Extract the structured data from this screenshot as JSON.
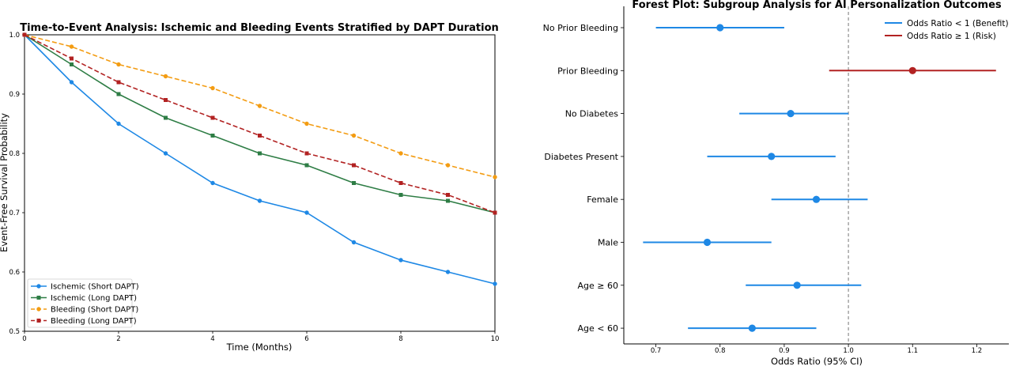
{
  "chart_data": [
    {
      "type": "line",
      "title": "Time-to-Event Analysis: Ischemic and Bleeding Events Stratified by DAPT Duration",
      "xlabel": "Time (Months)",
      "ylabel": "Event-Free Survival Probability",
      "xlim": [
        0,
        10
      ],
      "ylim": [
        0.5,
        1.0
      ],
      "xticks": [
        "0",
        "2",
        "4",
        "6",
        "8",
        "10"
      ],
      "yticks": [
        "0.5",
        "0.6",
        "0.7",
        "0.8",
        "0.9",
        "1.0"
      ],
      "grid": false,
      "legend_position": "lower-left",
      "x": [
        0,
        1,
        2,
        3,
        4,
        5,
        6,
        7,
        8,
        9,
        10
      ],
      "series": [
        {
          "name": "Ischemic (Short DAPT)",
          "color": "#1e88e5",
          "dash": "solid",
          "marker": "circle",
          "values": [
            1.0,
            0.92,
            0.85,
            0.8,
            0.75,
            0.72,
            0.7,
            0.65,
            0.62,
            0.6,
            0.58
          ]
        },
        {
          "name": "Ischemic (Long DAPT)",
          "color": "#2e7d45",
          "dash": "solid",
          "marker": "square",
          "values": [
            1.0,
            0.95,
            0.9,
            0.86,
            0.83,
            0.8,
            0.78,
            0.75,
            0.73,
            0.72,
            0.7
          ]
        },
        {
          "name": "Bleeding (Short DAPT)",
          "color": "#f39c12",
          "dash": "dashed",
          "marker": "circle",
          "values": [
            1.0,
            0.98,
            0.95,
            0.93,
            0.91,
            0.88,
            0.85,
            0.83,
            0.8,
            0.78,
            0.76
          ]
        },
        {
          "name": "Bleeding (Long DAPT)",
          "color": "#b22222",
          "dash": "dashed",
          "marker": "square",
          "values": [
            1.0,
            0.96,
            0.92,
            0.89,
            0.86,
            0.83,
            0.8,
            0.78,
            0.75,
            0.73,
            0.7
          ]
        }
      ]
    },
    {
      "type": "scatter",
      "title": "Forest Plot: Subgroup Analysis for AI Personalization Outcomes",
      "xlabel": "Odds Ratio (95% CI)",
      "xlim": [
        0.65,
        1.25
      ],
      "xticks": [
        "0.7",
        "0.8",
        "0.9",
        "1.0",
        "1.1",
        "1.2"
      ],
      "reference_line": 1.0,
      "legend_position": "top-right",
      "legend": [
        {
          "label": "Odds Ratio < 1 (Benefit)",
          "color": "#1e88e5"
        },
        {
          "label": "Odds Ratio ≥ 1 (Risk)",
          "color": "#b22222"
        }
      ],
      "subgroups": [
        {
          "label": "No Prior Bleeding",
          "or": 0.8,
          "ci": [
            0.7,
            0.9
          ],
          "color": "#1e88e5"
        },
        {
          "label": "Prior Bleeding",
          "or": 1.1,
          "ci": [
            0.97,
            1.23
          ],
          "color": "#b22222"
        },
        {
          "label": "No Diabetes",
          "or": 0.91,
          "ci": [
            0.83,
            1.0
          ],
          "color": "#1e88e5"
        },
        {
          "label": "Diabetes Present",
          "or": 0.88,
          "ci": [
            0.78,
            0.98
          ],
          "color": "#1e88e5"
        },
        {
          "label": "Female",
          "or": 0.95,
          "ci": [
            0.88,
            1.03
          ],
          "color": "#1e88e5"
        },
        {
          "label": "Male",
          "or": 0.78,
          "ci": [
            0.68,
            0.88
          ],
          "color": "#1e88e5"
        },
        {
          "label": "Age ≥ 60",
          "or": 0.92,
          "ci": [
            0.84,
            1.02
          ],
          "color": "#1e88e5"
        },
        {
          "label": "Age < 60",
          "or": 0.85,
          "ci": [
            0.75,
            0.95
          ],
          "color": "#1e88e5"
        }
      ]
    }
  ]
}
